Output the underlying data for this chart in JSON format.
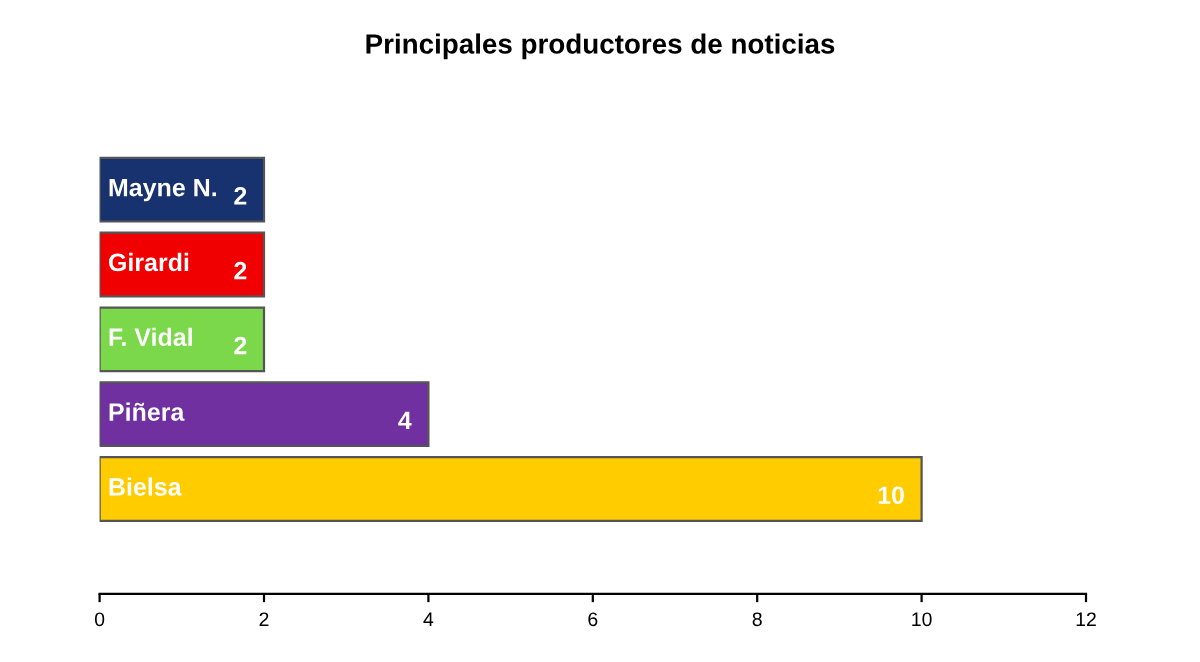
{
  "chart_data": {
    "type": "bar",
    "orientation": "horizontal",
    "title": "Principales productores de noticias",
    "categories": [
      "Mayne N.",
      "Girardi",
      "F. Vidal",
      "Piñera",
      "Bielsa"
    ],
    "values": [
      2,
      2,
      2,
      4,
      10
    ],
    "colors": [
      "#17326e",
      "#f00000",
      "#7ad84a",
      "#7030a0",
      "#ffcc00"
    ],
    "xlim": [
      0,
      12
    ],
    "xticks": [
      0,
      2,
      4,
      6,
      8,
      10,
      12
    ],
    "data_labels": true,
    "grid": false,
    "legend": false
  }
}
